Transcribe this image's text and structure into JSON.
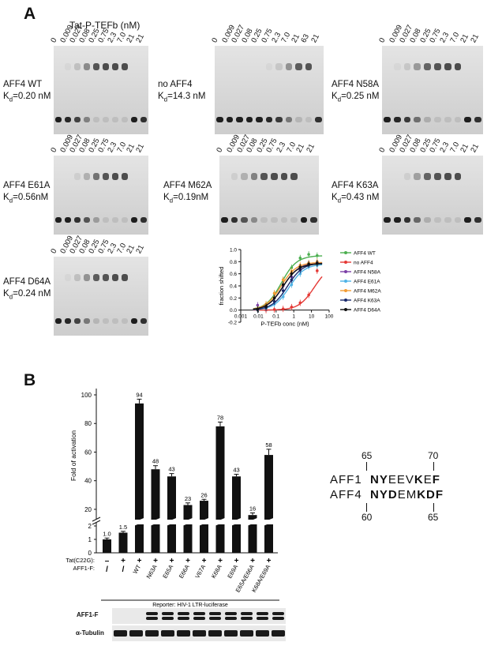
{
  "panel_a": {
    "letter": "A",
    "header": "Tat-P-TEFb (nM)",
    "lanes": [
      "0",
      "0.009",
      "0.027",
      "0.08",
      "0.25",
      "0.75",
      "2.3",
      "7.0",
      "21",
      "21"
    ],
    "lanes_no_aff4": [
      "0",
      "0.009",
      "0.027",
      "0.08",
      "0.25",
      "0.75",
      "2.3",
      "7.0",
      "21",
      "63",
      "21"
    ],
    "gels": [
      {
        "name": "AFF4 WT",
        "kd_label": "K",
        "kd_sub": "d",
        "kd_value": "=0.20 nM"
      },
      {
        "name": "no AFF4",
        "kd_label": "K",
        "kd_sub": "d",
        "kd_value": "=14.3 nM"
      },
      {
        "name": "AFF4 N58A",
        "kd_label": "K",
        "kd_sub": "d",
        "kd_value": "=0.25 nM"
      },
      {
        "name": "AFF4 E61A",
        "kd_label": "K",
        "kd_sub": "d",
        "kd_value": "=0.56nM"
      },
      {
        "name": "AFF4 M62A",
        "kd_label": "K",
        "kd_sub": "d",
        "kd_value": "=0.19nM"
      },
      {
        "name": "AFF4 K63A",
        "kd_label": "K",
        "kd_sub": "d",
        "kd_value": "=0.43 nM"
      },
      {
        "name": "AFF4 D64A",
        "kd_label": "K",
        "kd_sub": "d",
        "kd_value": "=0.24 nM"
      }
    ]
  },
  "chart_data": [
    {
      "type": "line",
      "title": "",
      "xlabel": "P-TEFb conc (nM)",
      "ylabel": "fraction shifted",
      "x_scale": "log",
      "xlim": [
        0.001,
        100
      ],
      "ylim": [
        -0.2,
        1.0
      ],
      "x_ticks": [
        "0.001",
        "0.01",
        "0.1",
        "1",
        "10",
        "100"
      ],
      "y_ticks": [
        "-0.2",
        "0.0",
        "0.2",
        "0.4",
        "0.6",
        "0.8",
        "1.0"
      ],
      "legend_position": "right",
      "x": [
        0.009,
        0.027,
        0.08,
        0.25,
        0.75,
        2.3,
        7.0,
        21
      ],
      "series": [
        {
          "name": "AFF4 WT",
          "color": "#4caf50",
          "kd": 0.2,
          "max": 0.9,
          "values": [
            0.02,
            0.08,
            0.27,
            0.5,
            0.7,
            0.86,
            0.92,
            0.9
          ]
        },
        {
          "name": "no AFF4",
          "color": "#e53935",
          "kd": 14.3,
          "max": 0.75,
          "values": [
            0.0,
            0.0,
            0.01,
            0.02,
            0.05,
            0.12,
            0.25,
            0.65
          ]
        },
        {
          "name": "AFF4 N58A",
          "color": "#7b3fa6",
          "kd": 0.25,
          "max": 0.78,
          "values": [
            0.08,
            0.06,
            0.2,
            0.4,
            0.55,
            0.68,
            0.75,
            0.77
          ]
        },
        {
          "name": "AFF4 E61A",
          "color": "#4fb3e6",
          "kd": 0.56,
          "max": 0.76,
          "values": [
            0.0,
            0.03,
            0.1,
            0.22,
            0.42,
            0.6,
            0.72,
            0.74
          ]
        },
        {
          "name": "AFF4 M62A",
          "color": "#f39c34",
          "kd": 0.19,
          "max": 0.79,
          "values": [
            0.02,
            0.1,
            0.28,
            0.5,
            0.64,
            0.74,
            0.78,
            0.8
          ]
        },
        {
          "name": "AFF4 K63A",
          "color": "#1a2a6c",
          "kd": 0.43,
          "max": 0.78,
          "values": [
            0.01,
            0.04,
            0.14,
            0.32,
            0.5,
            0.66,
            0.75,
            0.78
          ]
        },
        {
          "name": "AFF4 D64A",
          "color": "#111111",
          "kd": 0.24,
          "max": 0.77,
          "values": [
            0.01,
            0.06,
            0.2,
            0.42,
            0.6,
            0.71,
            0.76,
            0.77
          ]
        }
      ]
    },
    {
      "type": "bar",
      "title": "",
      "ylabel": "Fold of activation",
      "y_break": [
        2,
        15
      ],
      "y_ticks_lower": [
        "0",
        "1",
        "2"
      ],
      "y_ticks_upper": [
        "20",
        "40",
        "60",
        "80",
        "100"
      ],
      "ylim": [
        0,
        100
      ],
      "categories": [
        "-",
        "/",
        "WT",
        "N63A",
        "E65A",
        "E66A",
        "V67A",
        "K68A",
        "E69A",
        "E65A/E66A",
        "K68A/E69A"
      ],
      "tat_row": [
        "–",
        "+",
        "+",
        "+",
        "+",
        "+",
        "+",
        "+",
        "+",
        "+",
        "+"
      ],
      "aff1_row": [
        "/",
        "/"
      ],
      "values": [
        1.0,
        1.5,
        94,
        48,
        43,
        23,
        26,
        78,
        43,
        16,
        58
      ],
      "errors": [
        0.1,
        0.1,
        3,
        2.5,
        2,
        1.5,
        1,
        3,
        1.5,
        1.5,
        4
      ],
      "value_labels": [
        "1.0",
        "1.5",
        "94",
        "48",
        "43",
        "23",
        "26",
        "78",
        "43",
        "16",
        "58"
      ]
    }
  ],
  "panel_b": {
    "letter": "B",
    "tat_label": "Tat(C22G):",
    "aff_label": "AFF1-F:",
    "reporter": "Reporter: HIV-1 LTR-luciferase",
    "blot1_label": "AFF1-F",
    "blot2_label": "α-Tubulin"
  },
  "alignment": {
    "top_num_left": "65",
    "top_num_right": "70",
    "bottom_num_left": "60",
    "bottom_num_right": "65",
    "rows": [
      {
        "name": "AFF1",
        "bold1": "NY",
        "plain1": "EEV",
        "bold2": "K",
        "plain2": "E",
        "bold3": "F"
      },
      {
        "name": "AFF4",
        "bold1": "NYD",
        "plain1": "EM",
        "bold2": "KD",
        "plain2": "",
        "bold3": "F"
      }
    ]
  }
}
